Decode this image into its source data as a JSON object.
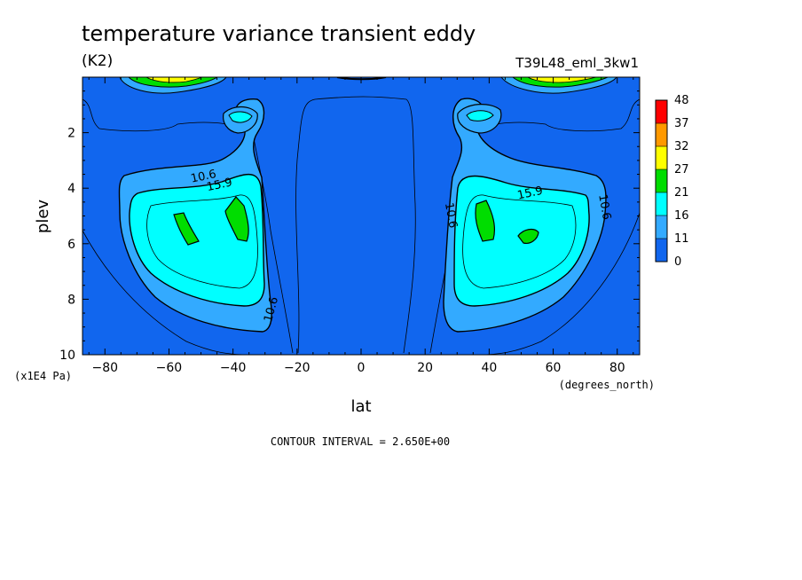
{
  "chart_data": {
    "type": "contour",
    "title": "temperature variance transient eddy",
    "units": "(K2)",
    "run_id": "T39L48_eml_3kw1",
    "xlabel": "lat",
    "x_units": "(degrees_north)",
    "ylabel": "plev",
    "y_units": "(x1E4 Pa)",
    "xlim": [
      -87,
      87
    ],
    "ylim": [
      10,
      0
    ],
    "x_ticks": [
      -80,
      -60,
      -40,
      -20,
      0,
      20,
      40,
      60,
      80
    ],
    "y_ticks": [
      2,
      4,
      6,
      8,
      10
    ],
    "contour_interval_text": "CONTOUR INTERVAL = 2.650E+00",
    "contour_labels": [
      {
        "text": "10.6",
        "lat": -49,
        "plev": 3.7
      },
      {
        "text": "15.9",
        "lat": -44,
        "plev": 4.0
      },
      {
        "text": "10.6",
        "lat": -27,
        "plev": 8.4
      },
      {
        "text": "10.6",
        "lat": 27,
        "plev": 5.0
      },
      {
        "text": "15.9",
        "lat": 53,
        "plev": 4.3
      },
      {
        "text": "10.6",
        "lat": 75,
        "plev": 4.7
      }
    ],
    "colorbar": {
      "labels": [
        "48",
        "37",
        "32",
        "27",
        "21",
        "16",
        "11",
        "0"
      ],
      "colors": [
        "#ff0000",
        "#ff9900",
        "#ffff00",
        "#00dd00",
        "#00ffff",
        "#33aaff",
        "#1166ee",
        "#1166ee"
      ]
    },
    "fill_colors": {
      "background": "#1166ee",
      "band_11_16": "#33aaff",
      "band_16_21": "#00ffff",
      "band_21_27": "#00dd00",
      "band_27_32": "#ffff00",
      "band_32_37": "#ff9900",
      "band_37_48": "#ff0000"
    }
  }
}
